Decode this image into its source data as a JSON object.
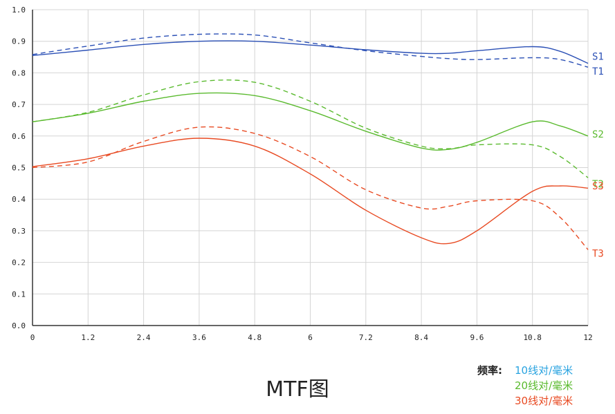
{
  "chart_data": {
    "type": "line",
    "title": "MTF图",
    "xlim": [
      0,
      12
    ],
    "ylim": [
      0,
      1
    ],
    "x_ticks": [
      "0",
      "1.2",
      "2.4",
      "3.6",
      "4.8",
      "6",
      "7.2",
      "8.4",
      "9.6",
      "10.8",
      "12"
    ],
    "y_ticks": [
      "0.0",
      "0.1",
      "0.2",
      "0.3",
      "0.4",
      "0.5",
      "0.6",
      "0.7",
      "0.8",
      "0.9",
      "1.0"
    ],
    "grid": true,
    "legend": {
      "title": "频率:",
      "entries": [
        {
          "label": "10线对/毫米",
          "color": "#29a3e0"
        },
        {
          "label": "20线对/毫米",
          "color": "#5aba2e"
        },
        {
          "label": "30线对/毫米",
          "color": "#e84a22"
        }
      ]
    },
    "x": [
      0,
      1.2,
      2.4,
      3.6,
      4.8,
      6,
      7.2,
      8.4,
      9,
      9.6,
      10.8,
      11.4,
      12
    ],
    "series": [
      {
        "name": "S1",
        "style": "solid",
        "color": "#2a4fb5",
        "values": [
          0.855,
          0.872,
          0.89,
          0.9,
          0.9,
          0.888,
          0.873,
          0.862,
          0.862,
          0.87,
          0.883,
          0.868,
          0.83
        ]
      },
      {
        "name": "T1",
        "style": "dashed",
        "color": "#2a4fb5",
        "values": [
          0.858,
          0.885,
          0.91,
          0.922,
          0.92,
          0.895,
          0.87,
          0.852,
          0.845,
          0.842,
          0.848,
          0.842,
          0.818
        ]
      },
      {
        "name": "S2",
        "style": "solid",
        "color": "#5aba2e",
        "values": [
          0.645,
          0.672,
          0.71,
          0.735,
          0.728,
          0.68,
          0.615,
          0.562,
          0.558,
          0.58,
          0.645,
          0.632,
          0.6
        ]
      },
      {
        "name": "T2",
        "style": "dashed",
        "color": "#5aba2e",
        "values": [
          0.645,
          0.675,
          0.73,
          0.772,
          0.77,
          0.71,
          0.625,
          0.568,
          0.56,
          0.572,
          0.572,
          0.535,
          0.468
        ]
      },
      {
        "name": "S3",
        "style": "solid",
        "color": "#e84a22",
        "values": [
          0.503,
          0.528,
          0.568,
          0.593,
          0.568,
          0.48,
          0.365,
          0.278,
          0.26,
          0.3,
          0.425,
          0.442,
          0.435
        ]
      },
      {
        "name": "T3",
        "style": "dashed",
        "color": "#e84a22",
        "values": [
          0.5,
          0.518,
          0.583,
          0.628,
          0.608,
          0.535,
          0.43,
          0.372,
          0.378,
          0.395,
          0.395,
          0.342,
          0.24
        ]
      }
    ]
  }
}
